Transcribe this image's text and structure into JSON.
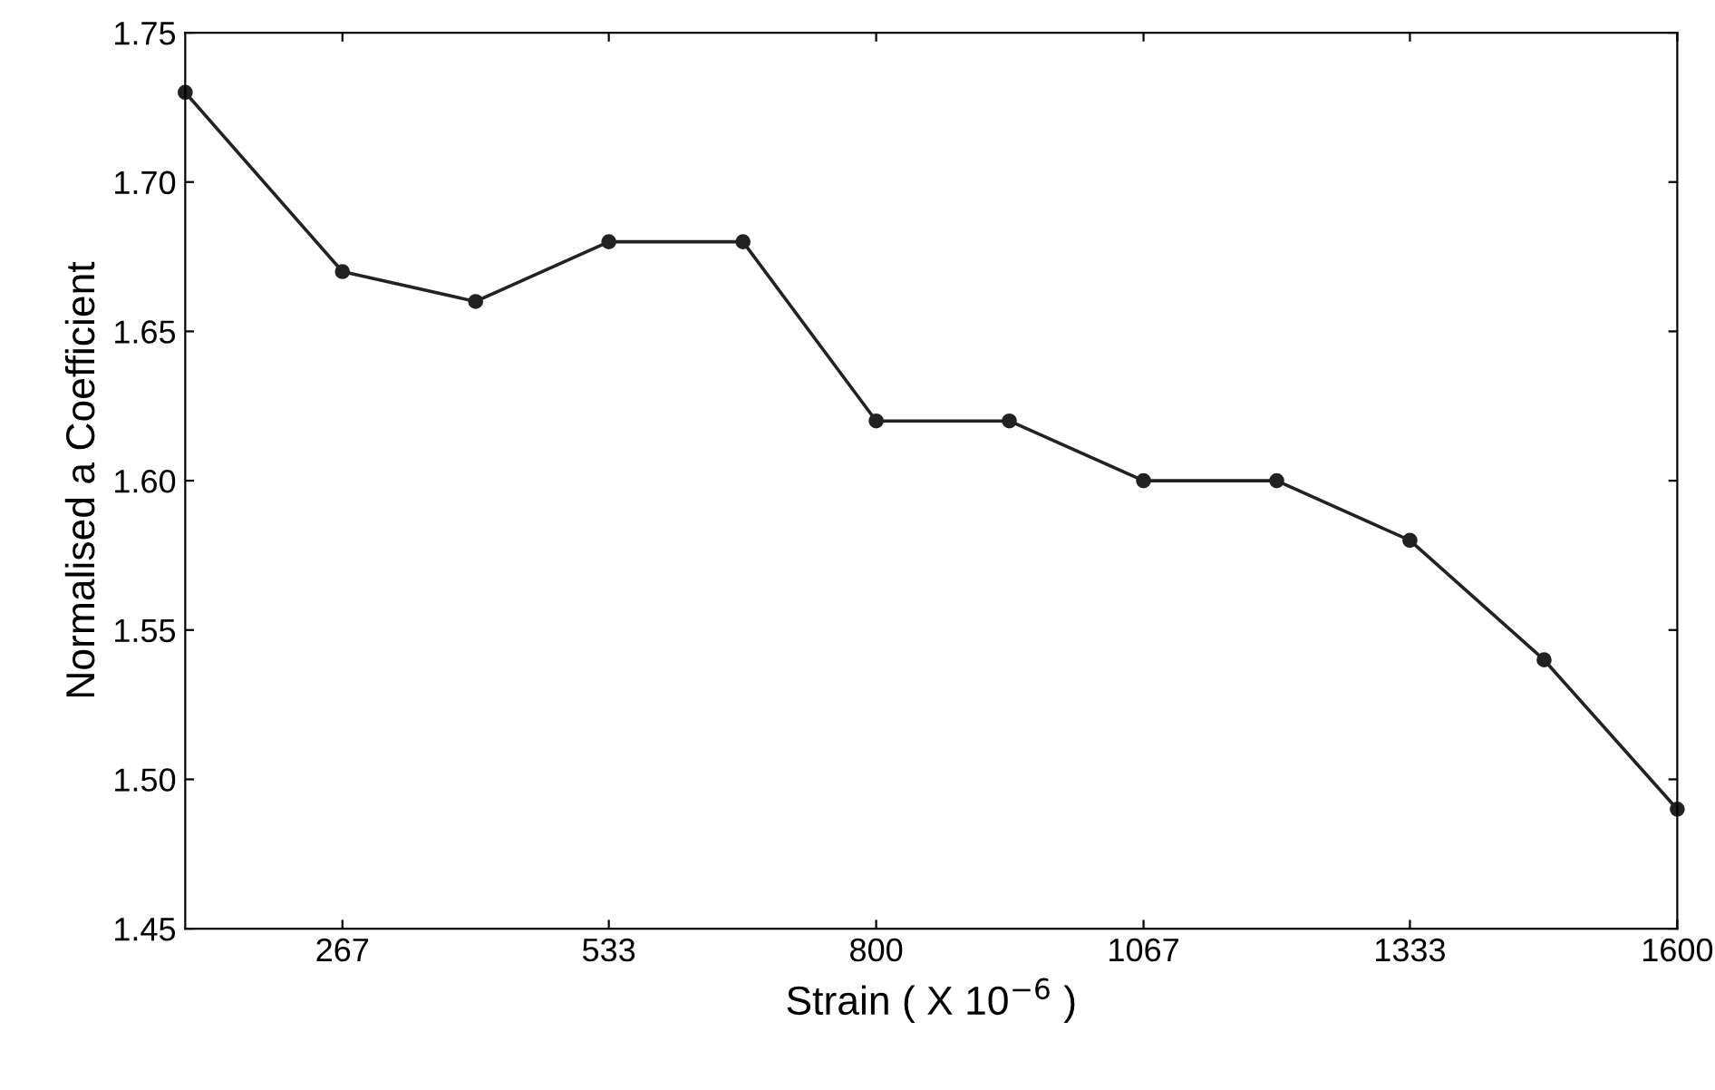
{
  "chart_data": {
    "type": "line",
    "xlabel": "Strain ( X 10$^{−6}$ )",
    "ylabel": "Normalised a Coefficient",
    "x": [
      110,
      267,
      400,
      533,
      667,
      800,
      933,
      1067,
      1200,
      1333,
      1467,
      1600
    ],
    "series": [
      {
        "color": "#222222",
        "values": [
          1.73,
          1.67,
          1.66,
          1.68,
          1.68,
          1.62,
          1.62,
          1.6,
          1.6,
          1.58,
          1.54,
          1.49
        ]
      }
    ],
    "xlim": [
      110,
      1600
    ],
    "xticks": [
      267,
      533,
      800,
      1067,
      1333,
      1600
    ],
    "ylim": [
      1.45,
      1.75
    ],
    "yticks": [
      {
        "value": 1.45,
        "label": "1.45"
      },
      {
        "value": 1.5,
        "label": "1.50"
      },
      {
        "value": 1.55,
        "label": "1.55"
      },
      {
        "value": 1.6,
        "label": "1.60"
      },
      {
        "value": 1.65,
        "label": "1.65"
      },
      {
        "value": 1.7,
        "label": "1.70"
      },
      {
        "value": 1.75,
        "label": "1.75"
      }
    ],
    "marker": "circle",
    "line_style": "solid",
    "grid": false,
    "legend": false
  }
}
